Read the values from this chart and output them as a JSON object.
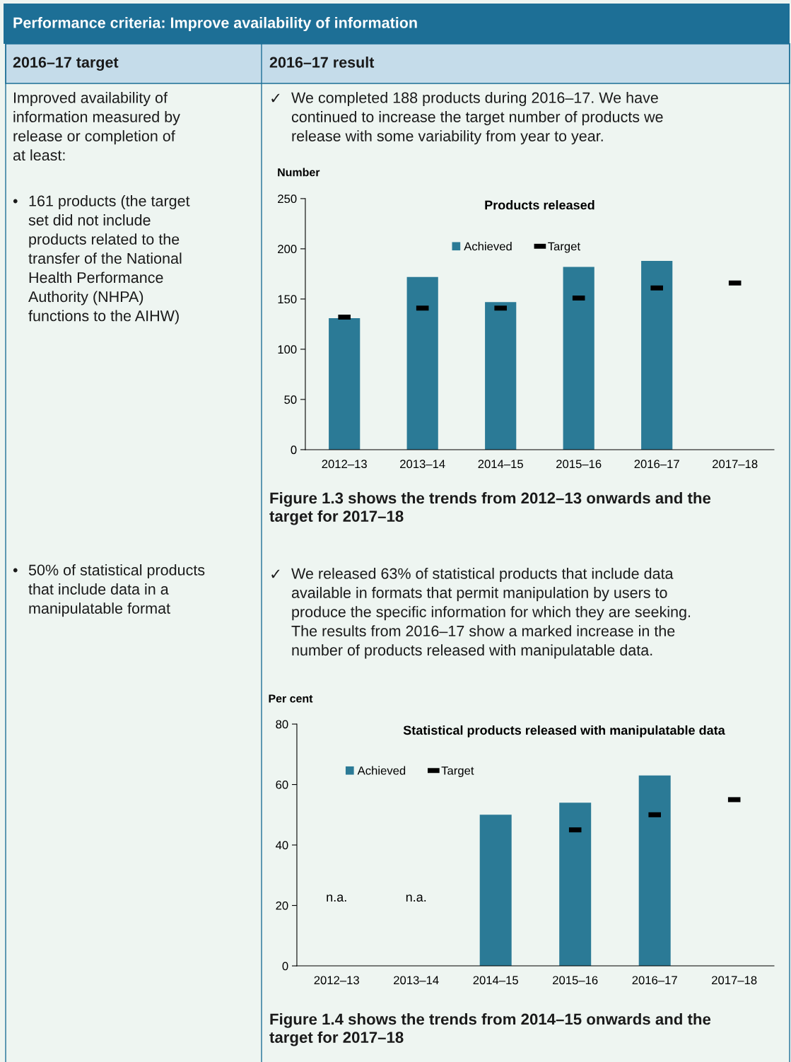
{
  "chart_data": [
    {
      "type": "other",
      "title": "Performance criteria: Improve availability of information",
      "annotations": [
        "2016–17 target",
        "2016–17 result",
        "Improved availability of\ninformation measured by\nrelease or completion of\nat least:",
        "•",
        "161 products (the target\nset did not include\nproducts related to the\ntransfer of the National\nHealth Performance\nAuthority (NHPA)\nfunctions to the AIHW)",
        "•",
        "50% of statistical products\nthat include data in a\nmanipulatable format",
        "✓",
        "We completed 188 products during 2016–17. We have\ncontinued to increase the target number of products we\nrelease with some variability from year to year.",
        "Figure 1.3 shows the trends from 2012–13 onwards and the\ntarget for 2017–18",
        "✓",
        "We released 63% of statistical products that include data\navailable in formats that permit manipulation by users to\nproduce the specific information for which they are seeking.\nThe results from 2016–17 show a marked increase in the\nnumber of products released with manipulatable data.",
        "Figure 1.4 shows the trends from 2014–15 onwards and the\ntarget for 2017–18"
      ]
    },
    {
      "type": "bar",
      "title": "Products released",
      "ylabel": "Number",
      "categories": [
        "2012–13",
        "2013–14",
        "2014–15",
        "2015–16",
        "2016–17",
        "2017–18"
      ],
      "series": [
        {
          "name": "Achieved",
          "type": "bar",
          "color": "#2b7a96",
          "values": [
            131,
            172,
            147,
            182,
            188,
            null
          ]
        },
        {
          "name": "Target",
          "type": "scatter",
          "color": "#000000",
          "values": [
            132,
            141,
            141,
            151,
            161,
            166
          ]
        }
      ],
      "ylim": [
        0,
        250
      ],
      "yticks": [
        0,
        50,
        100,
        150,
        200,
        250
      ],
      "grid": false,
      "legend": "top"
    },
    {
      "type": "bar",
      "title": "Statistical products released with manipulatable data",
      "ylabel": "Per cent",
      "categories": [
        "2012–13",
        "2013–14",
        "2014–15",
        "2015–16",
        "2016–17",
        "2017–18"
      ],
      "series": [
        {
          "name": "Achieved",
          "type": "bar",
          "color": "#2b7a96",
          "values": [
            null,
            null,
            50,
            54,
            63,
            null
          ]
        },
        {
          "name": "Target",
          "type": "scatter",
          "color": "#000000",
          "values": [
            null,
            null,
            null,
            45,
            50,
            55
          ]
        }
      ],
      "annotations": [
        "n.a.",
        "n.a."
      ],
      "ylim": [
        0,
        80
      ],
      "yticks": [
        0,
        20,
        40,
        60,
        80
      ],
      "grid": false,
      "legend": "top left"
    }
  ]
}
